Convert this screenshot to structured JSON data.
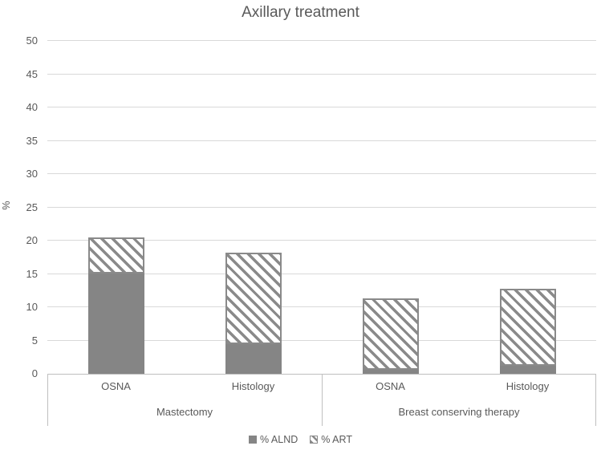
{
  "title": "Axillary treatment",
  "chart_data": {
    "type": "bar",
    "stacked": true,
    "title": "Axillary treatment",
    "xlabel": "",
    "ylabel": "%",
    "ylim": [
      0,
      50
    ],
    "ytick_step": 5,
    "yticks": [
      0,
      5,
      10,
      15,
      20,
      25,
      30,
      35,
      40,
      45,
      50
    ],
    "grid": true,
    "legend_position": "bottom",
    "categories": [
      "OSNA",
      "Histology",
      "OSNA",
      "Histology"
    ],
    "groups": [
      {
        "label": "Mastectomy",
        "span": 2
      },
      {
        "label": "Breast conserving therapy",
        "span": 2
      }
    ],
    "series": [
      {
        "name": "% ALND",
        "pattern": "solid",
        "color": "#858585",
        "values": [
          15.0,
          4.4,
          0.6,
          1.2
        ]
      },
      {
        "name": "% ART",
        "pattern": "diagonal-hatch",
        "color": "#8a8a8a",
        "values": [
          5.4,
          13.7,
          10.7,
          11.6
        ]
      }
    ]
  },
  "colors": {
    "background": "#ffffff",
    "text": "#595959",
    "gridline": "#d9d9d9",
    "axis_line": "#bfbfbf",
    "bar_solid": "#858585",
    "hatch_stripe": "#8a8a8a"
  }
}
